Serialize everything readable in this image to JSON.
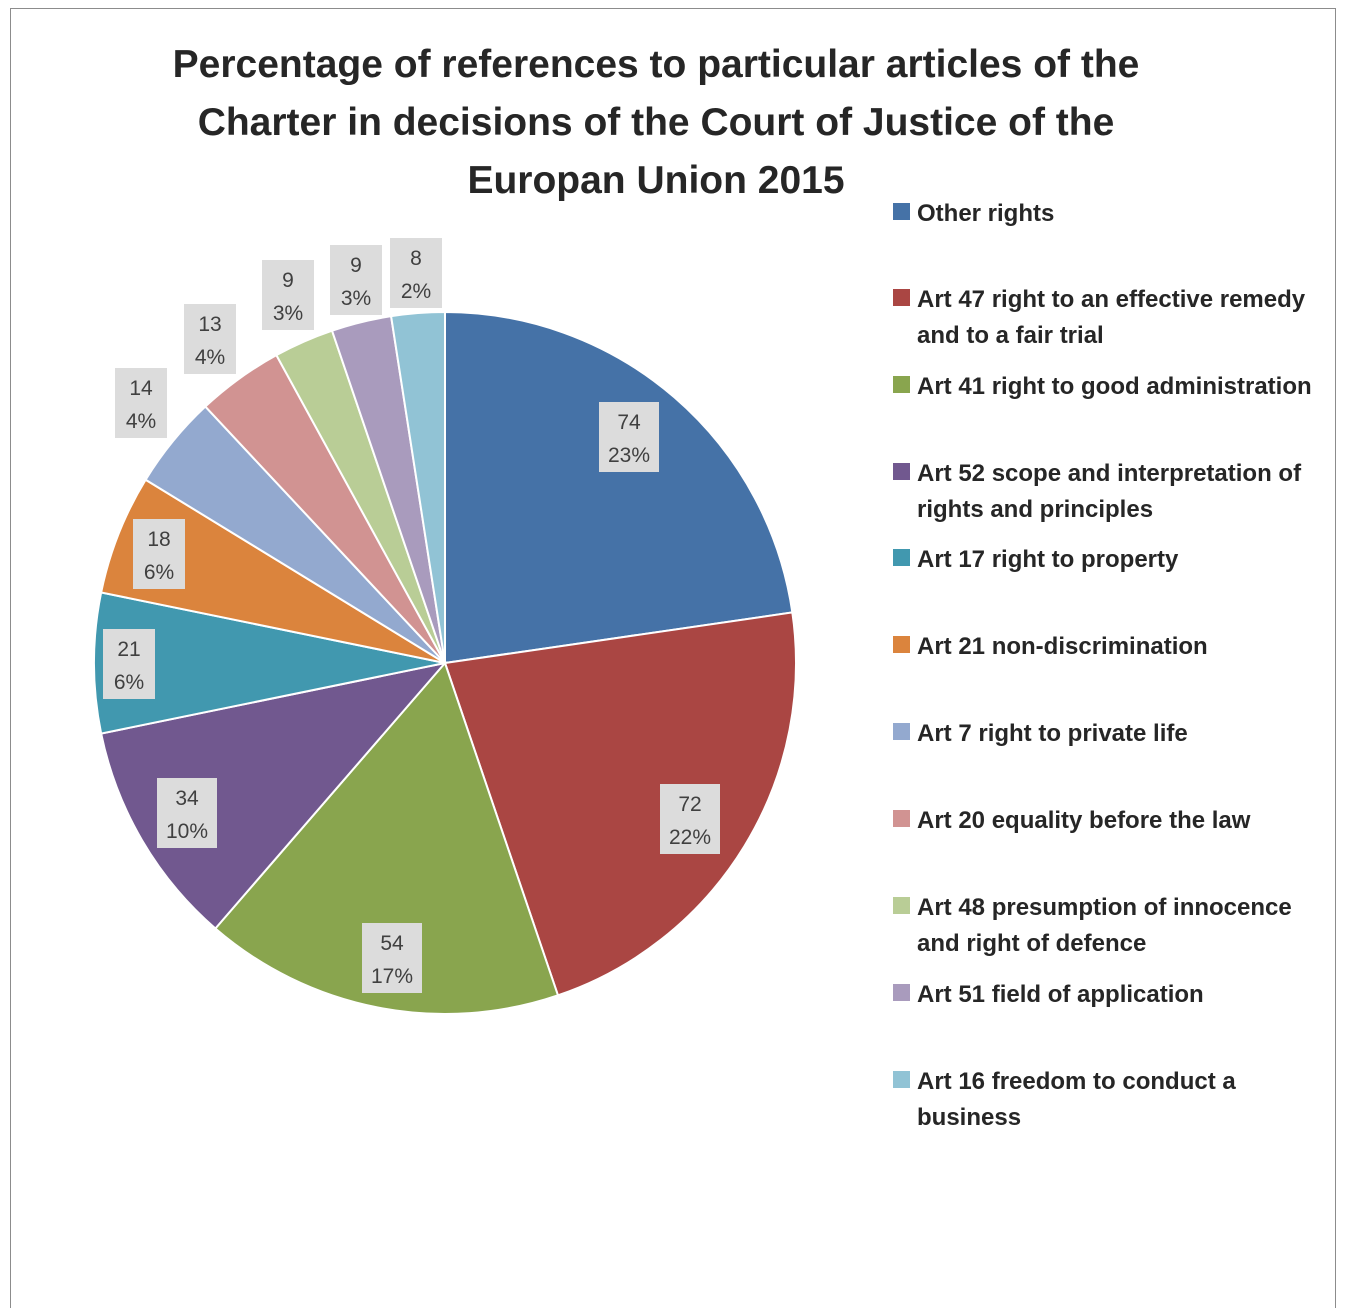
{
  "chart_data": {
    "type": "pie",
    "title_lines": [
      "Percentage of references to particular articles of the",
      "Charter in decisions of the Court of Justice of the",
      "Europan Union 2015"
    ],
    "legend_position": "right",
    "slices": [
      {
        "name": "Other rights",
        "value": 74,
        "percent": "23%",
        "color": "#4572a7"
      },
      {
        "name": "Art 47 right to an effective remedy and to a fair trial",
        "value": 72,
        "percent": "22%",
        "color": "#aa4643"
      },
      {
        "name": "Art 41 right to good administration",
        "value": 54,
        "percent": "17%",
        "color": "#89a54e"
      },
      {
        "name": "Art 52 scope and interpretation of rights and principles",
        "value": 34,
        "percent": "10%",
        "color": "#71588f"
      },
      {
        "name": "Art 17 right to property",
        "value": 21,
        "percent": "6%",
        "color": "#4198af"
      },
      {
        "name": "Art 21 non-discrimination",
        "value": 18,
        "percent": "6%",
        "color": "#db843d"
      },
      {
        "name": "Art 7 right to private life",
        "value": 14,
        "percent": "4%",
        "color": "#93a9cf"
      },
      {
        "name": "Art 20 equality before the law",
        "value": 13,
        "percent": "4%",
        "color": "#d19392"
      },
      {
        "name": "Art 48 presumption of innocence and right of defence",
        "value": 9,
        "percent": "3%",
        "color": "#b9cd96"
      },
      {
        "name": "Art 51 field of application",
        "value": 9,
        "percent": "3%",
        "color": "#a99bbd"
      },
      {
        "name": "Art 16 freedom to conduct a business",
        "value": 8,
        "percent": "2%",
        "color": "#91c3d5"
      }
    ]
  }
}
